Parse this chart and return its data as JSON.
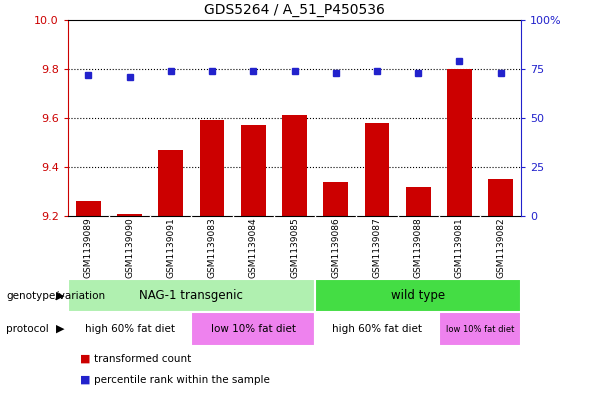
{
  "title": "GDS5264 / A_51_P450536",
  "samples": [
    "GSM1139089",
    "GSM1139090",
    "GSM1139091",
    "GSM1139083",
    "GSM1139084",
    "GSM1139085",
    "GSM1139086",
    "GSM1139087",
    "GSM1139088",
    "GSM1139081",
    "GSM1139082"
  ],
  "bar_values": [
    9.26,
    9.21,
    9.47,
    9.59,
    9.57,
    9.61,
    9.34,
    9.58,
    9.32,
    9.8,
    9.35
  ],
  "dot_values": [
    72,
    71,
    74,
    74,
    74,
    74,
    73,
    74,
    73,
    79,
    73
  ],
  "ylim_left": [
    9.2,
    10.0
  ],
  "ylim_right": [
    0,
    100
  ],
  "yticks_left": [
    9.2,
    9.4,
    9.6,
    9.8,
    10.0
  ],
  "yticks_right": [
    0,
    25,
    50,
    75,
    100
  ],
  "ytick_labels_right": [
    "0",
    "25",
    "50",
    "75",
    "100%"
  ],
  "bar_color": "#cc0000",
  "dot_color": "#2222cc",
  "tick_area_bg": "#c8c8c8",
  "genotype_groups": [
    {
      "label": "NAG-1 transgenic",
      "start": 0,
      "end": 6,
      "color": "#b0f0b0"
    },
    {
      "label": "wild type",
      "start": 6,
      "end": 11,
      "color": "#44dd44"
    }
  ],
  "protocol_groups": [
    {
      "label": "high 60% fat diet",
      "start": 0,
      "end": 3,
      "color": "#ee82ee"
    },
    {
      "label": "low 10% fat diet",
      "start": 3,
      "end": 6,
      "color": "#ee82ee"
    },
    {
      "label": "high 60% fat diet",
      "start": 6,
      "end": 9,
      "color": "#ee82ee"
    },
    {
      "label": "low 10% fat diet",
      "start": 9,
      "end": 11,
      "color": "#ee82ee"
    }
  ],
  "protocol_bg": [
    {
      "label": "high 60% fat diet",
      "start": 0,
      "end": 3,
      "color": "#ffffff"
    },
    {
      "label": "low 10% fat diet",
      "start": 3,
      "end": 6,
      "color": "#ee82ee"
    },
    {
      "label": "high 60% fat diet",
      "start": 6,
      "end": 9,
      "color": "#ffffff"
    },
    {
      "label": "low 10% fat diet",
      "start": 9,
      "end": 11,
      "color": "#ee82ee"
    }
  ],
  "left_axis_color": "#cc0000",
  "right_axis_color": "#2222cc",
  "legend_items": [
    {
      "label": "transformed count",
      "color": "#cc0000"
    },
    {
      "label": "percentile rank within the sample",
      "color": "#2222cc"
    }
  ]
}
